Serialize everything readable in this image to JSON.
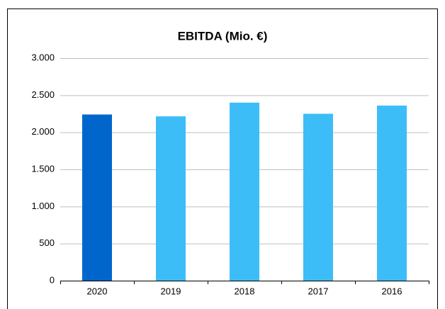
{
  "chart_data": {
    "type": "bar",
    "title": "EBITDA (Mio. €)",
    "categories": [
      "2020",
      "2019",
      "2018",
      "2017",
      "2016"
    ],
    "values": [
      2240,
      2215,
      2400,
      2250,
      2360
    ],
    "colors": [
      "#0066cc",
      "#3dbdf7",
      "#3dbdf7",
      "#3dbdf7",
      "#3dbdf7"
    ],
    "ylim": [
      0,
      3000
    ],
    "yticks": [
      0,
      500,
      {
        "value": 1000,
        "label": "1.000"
      },
      {
        "value": 1500,
        "label": "1.500"
      },
      {
        "value": 2000,
        "label": "2.000"
      },
      {
        "value": 2500,
        "label": "2.500"
      },
      {
        "value": 3000,
        "label": "3.000"
      }
    ],
    "grid": true
  }
}
